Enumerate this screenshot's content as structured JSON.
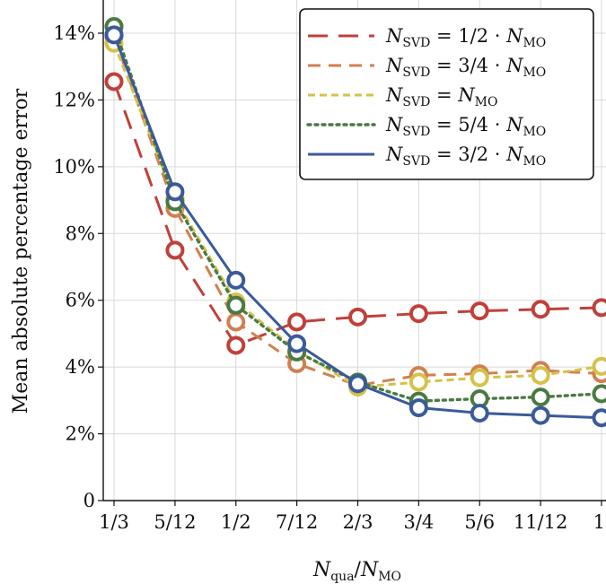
{
  "chart_data": {
    "type": "line",
    "xlabel": {
      "main": "N",
      "sub": "qua",
      "sep": "/",
      "main2": "N",
      "sub2": "MO"
    },
    "ylabel": "Mean absolute percentage error",
    "x": [
      0.3333,
      0.4167,
      0.5,
      0.5833,
      0.6667,
      0.75,
      0.8333,
      0.9167,
      1.0
    ],
    "x_tick_labels": [
      "1/3",
      "5/12",
      "1/2",
      "7/12",
      "2/3",
      "3/4",
      "5/6",
      "11/12",
      "1"
    ],
    "y_ticks": [
      0,
      2,
      4,
      6,
      8,
      10,
      12,
      14
    ],
    "y_tick_labels": [
      "0",
      "2%",
      "4%",
      "6%",
      "8%",
      "10%",
      "12%",
      "14%"
    ],
    "ylim": [
      0,
      14.6
    ],
    "grid": true,
    "legend_position": "top-right",
    "series": [
      {
        "name": "N_SVD = 1/2 · N_MO",
        "legend": {
          "lhs": "N",
          "sub": "SVD",
          "rhs": " = 1/2 · N",
          "sub2": "MO"
        },
        "color": "#c0403a",
        "dash": "long-dash",
        "values": [
          12.55,
          7.5,
          4.65,
          5.35,
          5.5,
          5.6,
          5.68,
          5.73,
          5.78
        ]
      },
      {
        "name": "N_SVD = 3/4 · N_MO",
        "legend": {
          "lhs": "N",
          "sub": "SVD",
          "rhs": " = 3/4 · N",
          "sub2": "MO"
        },
        "color": "#d08050",
        "dash": "dash",
        "values": [
          13.9,
          8.75,
          5.35,
          4.1,
          3.45,
          3.75,
          3.8,
          3.9,
          3.8
        ]
      },
      {
        "name": "N_SVD = N_MO",
        "legend": {
          "lhs": "N",
          "sub": "SVD",
          "rhs": " = N",
          "sub2": "MO"
        },
        "color": "#d4c24a",
        "dash": "short-dash",
        "values": [
          13.7,
          9.05,
          5.95,
          4.5,
          3.4,
          3.55,
          3.68,
          3.75,
          4.02
        ]
      },
      {
        "name": "N_SVD = 5/4 · N_MO",
        "legend": {
          "lhs": "N",
          "sub": "SVD",
          "rhs": " = 5/4 · N",
          "sub2": "MO"
        },
        "color": "#4a7a42",
        "dash": "dot",
        "values": [
          14.2,
          8.95,
          5.85,
          4.45,
          3.55,
          2.98,
          3.05,
          3.1,
          3.2
        ]
      },
      {
        "name": "N_SVD = 3/2 · N_MO",
        "legend": {
          "lhs": "N",
          "sub": "SVD",
          "rhs": " = 3/2 · N",
          "sub2": "MO"
        },
        "color": "#3a5a9a",
        "dash": "solid",
        "values": [
          13.95,
          9.25,
          6.6,
          4.7,
          3.5,
          2.78,
          2.62,
          2.55,
          2.48
        ]
      }
    ]
  }
}
